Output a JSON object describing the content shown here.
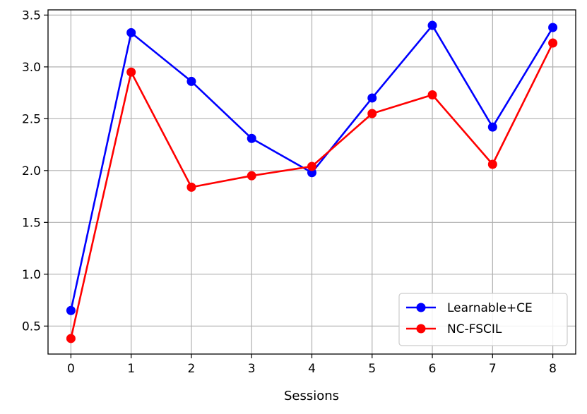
{
  "chart_data": {
    "type": "line",
    "xlabel": "Sessions",
    "ylabel": "",
    "x": [
      0,
      1,
      2,
      3,
      4,
      5,
      6,
      7,
      8
    ],
    "xlim": [
      -0.38,
      8.38
    ],
    "ylim": [
      0.23,
      3.55
    ],
    "xticks": [
      "0",
      "1",
      "2",
      "3",
      "4",
      "5",
      "6",
      "7",
      "8"
    ],
    "yticks": [
      "0.5",
      "1.0",
      "1.5",
      "2.0",
      "2.5",
      "3.0",
      "3.5"
    ],
    "ytick_values": [
      0.5,
      1.0,
      1.5,
      2.0,
      2.5,
      3.0,
      3.5
    ],
    "grid": true,
    "legend_position": "lower-right",
    "series": [
      {
        "name": "Learnable+CE",
        "color": "#0000ff",
        "marker": "circle",
        "values": [
          0.65,
          3.33,
          2.86,
          2.31,
          1.98,
          2.7,
          3.4,
          2.42,
          3.38
        ]
      },
      {
        "name": "NC-FSCIL",
        "color": "#ff0000",
        "marker": "circle",
        "values": [
          0.38,
          2.95,
          1.84,
          1.95,
          2.04,
          2.55,
          2.73,
          2.06,
          3.23
        ]
      }
    ]
  }
}
